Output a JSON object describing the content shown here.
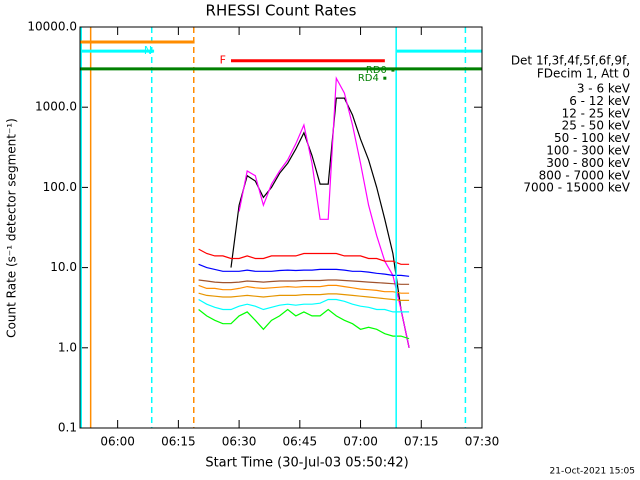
{
  "chart_data": {
    "type": "line",
    "title": "RHESSI Count Rates",
    "x_label": "Start Time (30-Jul-03 05:50:42)",
    "y_label": "Count Rate (s⁻¹ detector segment⁻¹)",
    "footer": "21-Oct-2021 15:05",
    "legend_title": [
      "Det 1f,3f,4f,5f,6f,9f,",
      "FDecim 1, Att 0"
    ],
    "log_y": true,
    "xlim": [
      "05:50:42",
      "07:30"
    ],
    "xticks": [
      "06:00",
      "06:15",
      "06:30",
      "06:45",
      "07:00",
      "07:15",
      "07:30"
    ],
    "ylim": [
      0.1,
      10000
    ],
    "yticks": [
      0.1,
      {
        "value": 1,
        "label": "1.0"
      },
      {
        "value": 10,
        "label": "10.0"
      },
      {
        "value": 100,
        "label": "100.0"
      },
      {
        "value": 1000,
        "label": "1000.0"
      },
      {
        "value": 10000,
        "label": "10000.0"
      }
    ],
    "x": [
      "06:20",
      "06:22",
      "06:24",
      "06:26",
      "06:28",
      "06:30",
      "06:32",
      "06:34",
      "06:36",
      "06:38",
      "06:40",
      "06:42",
      "06:44",
      "06:46",
      "06:48",
      "06:50",
      "06:52",
      "06:54",
      "06:56",
      "06:58",
      "07:00",
      "07:02",
      "07:04",
      "07:06",
      "07:08",
      "07:10",
      "07:12"
    ],
    "series": [
      {
        "name": "3 - 6 keV",
        "color": "#000000",
        "values": [
          null,
          null,
          null,
          null,
          10,
          60,
          140,
          120,
          75,
          100,
          150,
          200,
          300,
          480,
          250,
          110,
          110,
          1300,
          1300,
          800,
          400,
          220,
          100,
          40,
          15,
          3,
          1
        ]
      },
      {
        "name": "6 - 12 keV",
        "color": "#ff00ff",
        "values": [
          null,
          null,
          null,
          null,
          null,
          50,
          160,
          140,
          60,
          110,
          160,
          220,
          350,
          600,
          200,
          40,
          40,
          2300,
          1500,
          600,
          200,
          60,
          25,
          12,
          8,
          3,
          1
        ]
      },
      {
        "name": "12 - 25 keV",
        "color": "#00ff00",
        "values": [
          3,
          2.5,
          2.2,
          2,
          2,
          2.5,
          2.8,
          2.2,
          1.7,
          2.2,
          2.5,
          3,
          2.5,
          2.8,
          2.5,
          2.5,
          3,
          2.5,
          2.2,
          2,
          1.7,
          1.8,
          1.7,
          1.5,
          1.4,
          1.4,
          1.3
        ]
      },
      {
        "name": "25 - 50 keV",
        "color": "#00ffff",
        "values": [
          4,
          3.5,
          3.2,
          3,
          3,
          3.3,
          3.5,
          3.3,
          3,
          3.2,
          3.4,
          3.5,
          3.4,
          3.5,
          3.5,
          3.6,
          4,
          4,
          3.8,
          3.5,
          3.3,
          3.2,
          3,
          3,
          2.8,
          2.8,
          2.8
        ]
      },
      {
        "name": "50 - 100 keV",
        "color": "#ff8c00",
        "values": [
          6,
          5.5,
          5.5,
          5.3,
          5.3,
          5.5,
          5.8,
          5.6,
          5.5,
          5.6,
          5.7,
          5.8,
          5.7,
          5.8,
          5.8,
          5.8,
          6,
          6,
          5.8,
          5.6,
          5.4,
          5.3,
          5.2,
          5,
          5,
          4.8,
          4.8
        ]
      },
      {
        "name": "100 - 300 keV",
        "color": "#ff0000",
        "values": [
          17,
          15,
          14,
          14,
          13,
          13,
          14,
          13,
          13,
          14,
          14,
          14,
          14,
          15,
          15,
          15,
          15,
          15,
          14,
          14,
          14,
          13,
          13,
          12,
          12,
          11,
          11
        ]
      },
      {
        "name": "300 - 800 keV",
        "color": "#0000ff",
        "values": [
          11,
          10,
          9.5,
          9,
          9,
          9,
          9.3,
          9,
          9,
          9,
          9.2,
          9.3,
          9.2,
          9.3,
          9.3,
          9.5,
          9.5,
          9.5,
          9.3,
          9,
          9,
          8.8,
          8.5,
          8.3,
          8,
          8,
          7.8
        ]
      },
      {
        "name": "800 - 7000 keV",
        "color": "#e69500",
        "values": [
          4.8,
          4.5,
          4.4,
          4.3,
          4.3,
          4.4,
          4.5,
          4.4,
          4.3,
          4.4,
          4.5,
          4.5,
          4.5,
          4.6,
          4.6,
          4.6,
          4.7,
          4.7,
          4.6,
          4.5,
          4.4,
          4.3,
          4.2,
          4.1,
          4,
          3.9,
          3.9
        ]
      },
      {
        "name": "7000 - 15000 keV",
        "color": "#a0522d",
        "values": [
          7,
          6.8,
          6.6,
          6.5,
          6.5,
          6.6,
          6.8,
          6.7,
          6.6,
          6.7,
          6.8,
          6.8,
          6.8,
          6.9,
          6.9,
          6.9,
          7,
          7,
          6.9,
          6.8,
          6.7,
          6.6,
          6.5,
          6.4,
          6.3,
          6.2,
          6.2
        ]
      }
    ],
    "intervals": [
      {
        "color": "#ff8c00",
        "start": "05:50:42",
        "end": "06:19",
        "level": 6500
      },
      {
        "label": "N",
        "color": "#00ffff",
        "start": "05:50:42",
        "end": "06:09",
        "level": 5000
      },
      {
        "label": "F",
        "color": "#ff0000",
        "start": "06:28",
        "end": "07:06",
        "level": 3800
      },
      {
        "color": "#008000",
        "start": "05:50:42",
        "end": "07:30",
        "level": 3000
      },
      {
        "color": "#00ffff",
        "start": "07:09",
        "end": "07:30",
        "level": 5000
      }
    ],
    "vlines": [
      {
        "time": "05:51",
        "color": "#00ffff",
        "dashed": false
      },
      {
        "time": "05:53:20",
        "color": "#ff8c00",
        "dashed": false
      },
      {
        "time": "06:08:25",
        "color": "#00ffff",
        "dashed": true
      },
      {
        "time": "06:18:48",
        "color": "#ff8c00",
        "dashed": true
      },
      {
        "time": "07:08:48",
        "color": "#00ffff",
        "dashed": false
      },
      {
        "time": "07:25:54",
        "color": "#00ffff",
        "dashed": true
      }
    ],
    "markers": [
      {
        "label": "RD4",
        "color": "#008000",
        "time": "07:06",
        "level": 2300
      },
      {
        "label": "RD0",
        "color": "#008000",
        "time": "07:08",
        "level": 2900
      }
    ]
  }
}
